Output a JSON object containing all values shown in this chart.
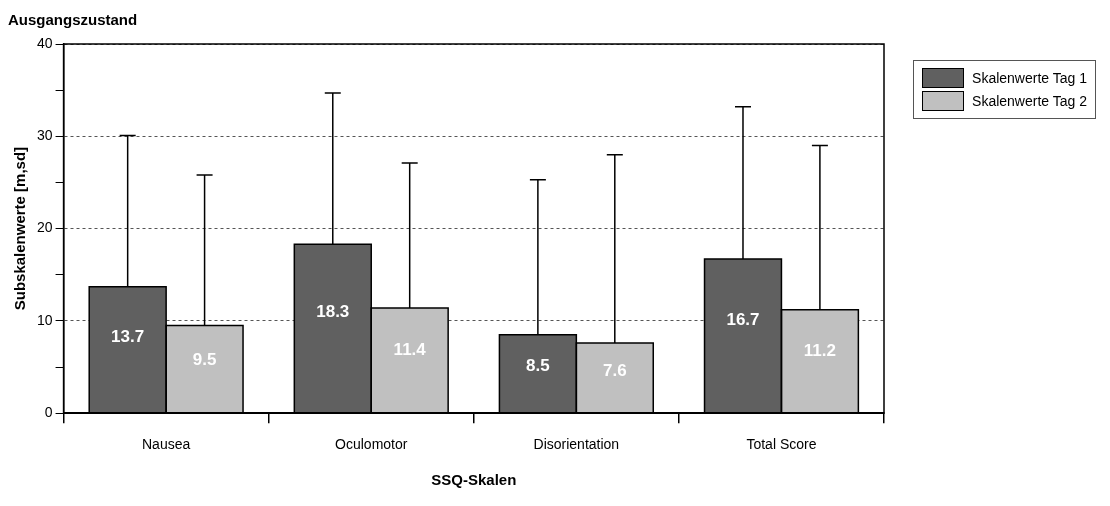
{
  "chart_data": {
    "type": "bar",
    "title": "Ausgangszustand",
    "xlabel": "SSQ-Skalen",
    "ylabel": "Subskalenwerte [m,sd]",
    "categories": [
      "Nausea",
      "Oculomotor",
      "Disorientation",
      "Total Score"
    ],
    "series": [
      {
        "name": "Skalenwerte Tag 1",
        "color": "#606060",
        "values": [
          13.7,
          18.3,
          8.5,
          16.7
        ],
        "errors": [
          [
            13.7,
            30.1
          ],
          [
            18.3,
            34.7
          ],
          [
            8.5,
            25.3
          ],
          [
            16.7,
            33.2
          ]
        ]
      },
      {
        "name": "Skalenwerte Tag 2",
        "color": "#c0c0c0",
        "values": [
          9.5,
          11.4,
          7.6,
          11.2
        ],
        "errors": [
          [
            9.5,
            25.8
          ],
          [
            11.4,
            27.1
          ],
          [
            7.6,
            28.0
          ],
          [
            11.2,
            29.0
          ]
        ]
      }
    ],
    "ylim": [
      0,
      40
    ],
    "yticks": [
      0,
      {
        "value": 5,
        "label": null
      },
      10,
      {
        "value": 15,
        "label": null
      },
      20,
      {
        "value": 25,
        "label": null
      },
      30,
      {
        "value": 35,
        "label": null
      },
      40
    ],
    "grid": "y",
    "legend": "top right",
    "data_labels": true
  }
}
